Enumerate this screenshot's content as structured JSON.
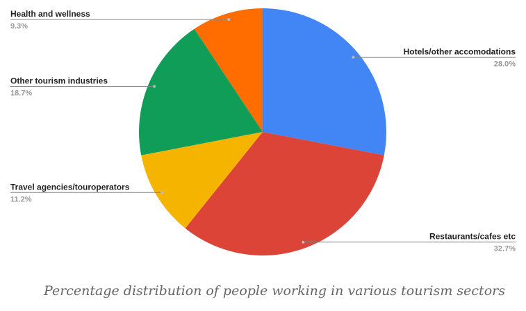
{
  "chart_data": {
    "type": "pie",
    "categories": [
      "Hotels/other accomodations",
      "Restaurants/cafes etc",
      "Travel agencies/touroperators",
      "Other tourism industries",
      "Health and wellness"
    ],
    "values": [
      28.0,
      32.7,
      11.2,
      18.7,
      9.3
    ],
    "value_labels": [
      "28.0%",
      "32.7%",
      "11.2%",
      "18.7%",
      "9.3%"
    ],
    "colors": [
      "#4285f4",
      "#db4437",
      "#f4b400",
      "#0f9d58",
      "#ff6d01"
    ],
    "caption": "Percentage distribution of people working in various tourism sectors"
  }
}
